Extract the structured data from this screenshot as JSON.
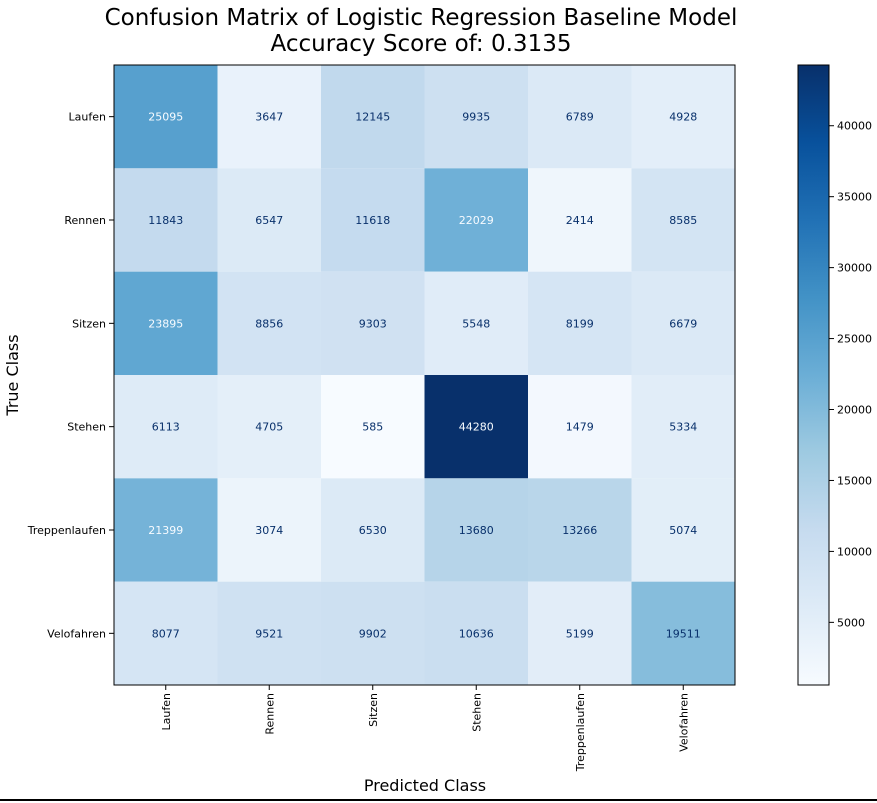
{
  "chart_data": {
    "type": "heatmap",
    "title": "Confusion Matrix of Logistic Regression Baseline Model",
    "subtitle": "Accuracy Score of: 0.3135",
    "xlabel": "Predicted Class",
    "ylabel": "True Class",
    "x_categories": [
      "Laufen",
      "Rennen",
      "Sitzen",
      "Stehen",
      "Treppenlaufen",
      "Velofahren"
    ],
    "y_categories": [
      "Laufen",
      "Rennen",
      "Sitzen",
      "Stehen",
      "Treppenlaufen",
      "Velofahren"
    ],
    "values": [
      [
        25095,
        3647,
        12145,
        9935,
        6789,
        4928
      ],
      [
        11843,
        6547,
        11618,
        22029,
        2414,
        8585
      ],
      [
        23895,
        8856,
        9303,
        5548,
        8199,
        6679
      ],
      [
        6113,
        4705,
        585,
        44280,
        1479,
        5334
      ],
      [
        21399,
        3074,
        6530,
        13680,
        13266,
        5074
      ],
      [
        8077,
        9521,
        9902,
        10636,
        5199,
        19511
      ]
    ],
    "colormap": "Blues",
    "colorbar": {
      "ticks": [
        5000,
        10000,
        15000,
        20000,
        25000,
        30000,
        35000,
        40000
      ],
      "range": [
        585,
        44280
      ]
    },
    "colors": {
      "low": "#f7fbff",
      "high": "#08306b",
      "text_dark": "#08306b",
      "text_light": "#f7fbff"
    }
  }
}
